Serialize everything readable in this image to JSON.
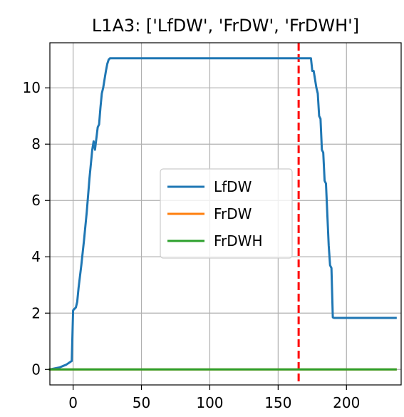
{
  "chart_data": {
    "type": "line",
    "title": "L1A3: ['LfDW', 'FrDW', 'FrDWH']",
    "xlabel": "",
    "ylabel": "",
    "xlim": [
      -17,
      240
    ],
    "ylim": [
      -0.55,
      11.6
    ],
    "xticks": [
      0,
      50,
      100,
      150,
      200
    ],
    "yticks": [
      0,
      2,
      4,
      6,
      8,
      10
    ],
    "grid": true,
    "legend_position": "center",
    "series": [
      {
        "name": "LfDW",
        "color": "#1f77b4",
        "x": [
          -17,
          -10,
          -5,
          -1,
          0,
          1,
          2,
          3,
          4,
          5,
          6,
          8,
          10,
          12,
          14,
          15,
          16,
          17,
          18,
          19,
          20,
          21,
          22,
          23,
          24,
          25,
          26,
          27,
          28,
          29,
          30,
          60,
          100,
          150,
          165,
          174,
          175,
          176,
          177,
          178,
          179,
          180,
          181,
          182,
          183,
          184,
          185,
          186,
          187,
          188,
          189,
          190,
          191,
          195,
          200,
          236
        ],
        "y": [
          0.0,
          0.07,
          0.17,
          0.3,
          2.1,
          2.15,
          2.2,
          2.4,
          2.9,
          3.3,
          3.7,
          4.6,
          5.6,
          6.8,
          7.8,
          8.1,
          7.8,
          8.2,
          8.6,
          8.7,
          9.3,
          9.8,
          10.0,
          10.3,
          10.6,
          10.85,
          11.0,
          11.05,
          11.05,
          11.05,
          11.05,
          11.05,
          11.05,
          11.05,
          11.05,
          11.05,
          10.6,
          10.6,
          10.3,
          10.0,
          9.8,
          9.0,
          8.9,
          7.8,
          7.7,
          6.7,
          6.6,
          5.5,
          4.4,
          3.7,
          3.6,
          1.85,
          1.83,
          1.83,
          1.83,
          1.83
        ]
      },
      {
        "name": "FrDW",
        "color": "#ff7f0e",
        "x": [
          -17,
          236
        ],
        "y": [
          0.0,
          0.0
        ]
      },
      {
        "name": "FrDWH",
        "color": "#2ca02c",
        "x": [
          -17,
          236
        ],
        "y": [
          0.0,
          0.0
        ]
      }
    ],
    "vlines": [
      {
        "x": 165,
        "color": "#ff0000",
        "style": "dashed"
      }
    ]
  }
}
